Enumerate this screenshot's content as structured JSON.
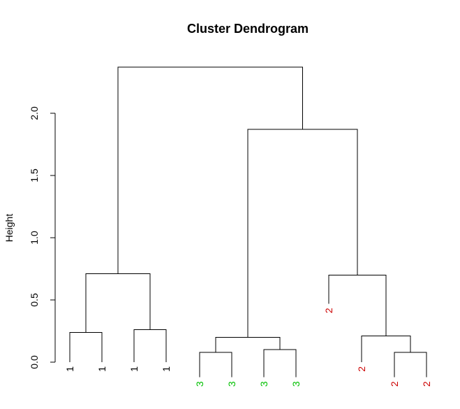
{
  "chart_data": {
    "type": "dendrogram",
    "title": "Cluster Dendrogram",
    "ylabel": "Height",
    "xlabel": "",
    "ylim": [
      0,
      2.4
    ],
    "yticks": [
      "0.0",
      "0.5",
      "1.0",
      "1.5",
      "2.0"
    ],
    "grid": false,
    "leaves": [
      {
        "label": "1",
        "color": "#000000"
      },
      {
        "label": "1",
        "color": "#000000"
      },
      {
        "label": "1",
        "color": "#000000"
      },
      {
        "label": "1",
        "color": "#000000"
      },
      {
        "label": "3",
        "color": "#00c000"
      },
      {
        "label": "3",
        "color": "#00c000"
      },
      {
        "label": "3",
        "color": "#00c000"
      },
      {
        "label": "3",
        "color": "#00c000"
      },
      {
        "label": "2",
        "color": "#cc0000"
      },
      {
        "label": "2",
        "color": "#cc0000"
      },
      {
        "label": "2",
        "color": "#cc0000"
      },
      {
        "label": "2",
        "color": "#cc0000"
      }
    ],
    "merges": [
      {
        "a": "L0",
        "b": "L1",
        "height": 0.24
      },
      {
        "a": "L2",
        "b": "L3",
        "height": 0.26
      },
      {
        "a": "M0",
        "b": "M1",
        "height": 0.71
      },
      {
        "a": "L4",
        "b": "L5",
        "height": 0.08
      },
      {
        "a": "L6",
        "b": "L7",
        "height": 0.1
      },
      {
        "a": "M3",
        "b": "M4",
        "height": 0.2
      },
      {
        "a": "L10",
        "b": "L11",
        "height": 0.08
      },
      {
        "a": "L9",
        "b": "M6",
        "height": 0.21
      },
      {
        "a": "L8",
        "b": "M7",
        "height": 0.7
      },
      {
        "a": "M5",
        "b": "M8",
        "height": 1.87
      },
      {
        "a": "M2",
        "b": "M9",
        "height": 2.37
      }
    ],
    "leaf_heights": [
      0.0,
      0.0,
      0.0,
      0.0,
      -0.12,
      -0.12,
      -0.12,
      -0.12,
      0.47,
      0.0,
      -0.12,
      -0.12
    ]
  }
}
